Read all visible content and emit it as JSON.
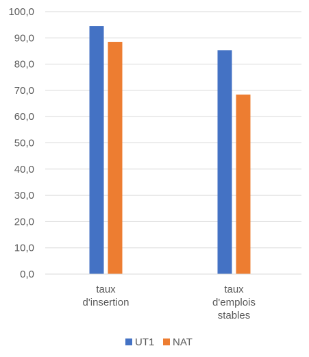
{
  "chart_data": {
    "type": "bar",
    "categories": [
      [
        "taux",
        "d'insertion"
      ],
      [
        "taux",
        "d'emplois",
        "stables"
      ]
    ],
    "series": [
      {
        "name": "UT1",
        "color": "#4472c4",
        "values": [
          94.5,
          85.3
        ]
      },
      {
        "name": "NAT",
        "color": "#ed7d31",
        "values": [
          88.5,
          68.4
        ]
      }
    ],
    "y_ticks": [
      "0,0",
      "10,0",
      "20,0",
      "30,0",
      "40,0",
      "50,0",
      "60,0",
      "70,0",
      "80,0",
      "90,0",
      "100,0"
    ],
    "ylim": [
      0,
      100
    ],
    "grid": true,
    "legend_position": "bottom"
  }
}
